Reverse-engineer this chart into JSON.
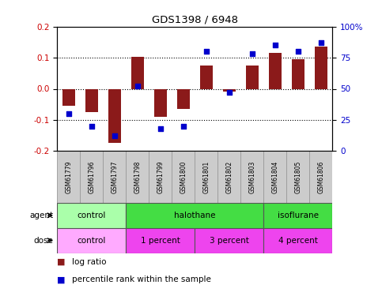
{
  "title": "GDS1398 / 6948",
  "samples": [
    "GSM61779",
    "GSM61796",
    "GSM61797",
    "GSM61798",
    "GSM61799",
    "GSM61800",
    "GSM61801",
    "GSM61802",
    "GSM61803",
    "GSM61804",
    "GSM61805",
    "GSM61806"
  ],
  "log_ratio": [
    -0.055,
    -0.075,
    -0.175,
    0.102,
    -0.09,
    -0.065,
    0.075,
    -0.01,
    0.075,
    0.115,
    0.095,
    0.135
  ],
  "percentile_rank": [
    30,
    20,
    12,
    52,
    18,
    20,
    80,
    47,
    78,
    85,
    80,
    87
  ],
  "ylim_left": [
    -0.2,
    0.2
  ],
  "ylim_right": [
    0,
    100
  ],
  "yticks_left": [
    -0.2,
    -0.1,
    0.0,
    0.1,
    0.2
  ],
  "yticks_right": [
    0,
    25,
    50,
    75,
    100
  ],
  "bar_color": "#8B1A1A",
  "dot_color": "#0000CC",
  "agent_groups": [
    {
      "label": "control",
      "start": 0,
      "end": 3,
      "color": "#AAFFAA"
    },
    {
      "label": "halothane",
      "start": 3,
      "end": 9,
      "color": "#44DD44"
    },
    {
      "label": "isoflurane",
      "start": 9,
      "end": 12,
      "color": "#44DD44"
    }
  ],
  "dose_groups": [
    {
      "label": "control",
      "start": 0,
      "end": 3,
      "color": "#FFAAFF"
    },
    {
      "label": "1 percent",
      "start": 3,
      "end": 6,
      "color": "#EE44EE"
    },
    {
      "label": "3 percent",
      "start": 6,
      "end": 9,
      "color": "#EE44EE"
    },
    {
      "label": "4 percent",
      "start": 9,
      "end": 12,
      "color": "#EE44EE"
    }
  ],
  "legend_bar_label": "log ratio",
  "legend_dot_label": "percentile rank within the sample",
  "background_color": "#ffffff",
  "axis_label_color_left": "#CC0000",
  "axis_label_color_right": "#0000CC",
  "sample_box_color": "#CCCCCC",
  "sample_box_edge": "#999999"
}
